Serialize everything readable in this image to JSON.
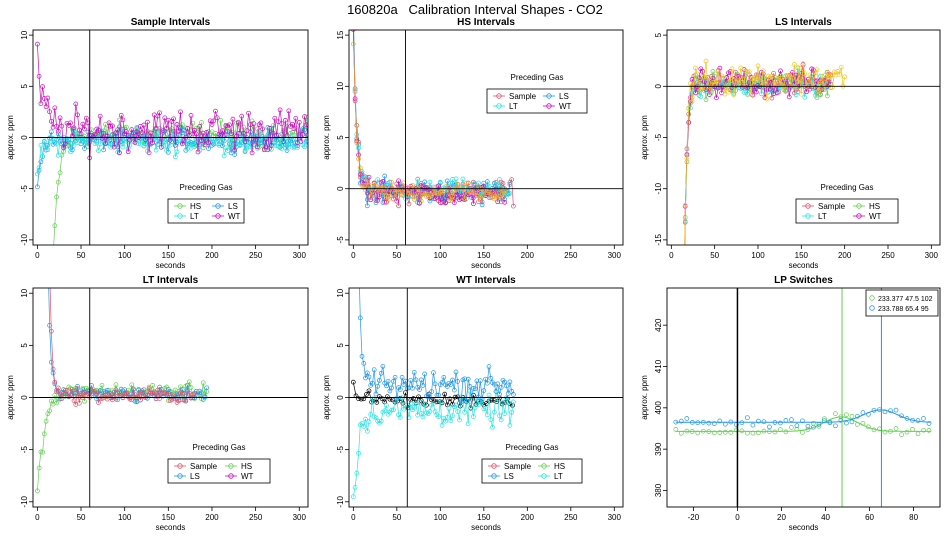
{
  "figure": {
    "title": "160820a   Calibration Interval Shapes - CO2"
  },
  "colors": {
    "Sample": "#df536b",
    "HS": "#61d04f",
    "LS": "#2297e6",
    "LT": "#28e2e5",
    "WT": "#cd0bbc",
    "Black": "#000000"
  },
  "chart_data": [
    {
      "type": "line",
      "title": "Sample Intervals",
      "xlabel": "seconds",
      "ylabel": "approx. ppm",
      "xlim": [
        -5,
        310
      ],
      "ylim": [
        -10.5,
        10.5
      ],
      "xticks": [
        0,
        50,
        100,
        150,
        200,
        250,
        300
      ],
      "yticks": [
        -10,
        -5,
        0,
        5,
        10
      ],
      "hline": 0,
      "vline": 60,
      "legend": {
        "title": "Preceding Gas",
        "position": "bottom-right",
        "entries": [
          "HS",
          "LS",
          "LT",
          "WT"
        ]
      },
      "series": [
        {
          "name": "HS",
          "color": "#61d04f",
          "start": 16,
          "end": 310,
          "dt": 2,
          "base": 0.3,
          "noise": 1.1,
          "amp": -18,
          "tau": 6
        },
        {
          "name": "LS",
          "color": "#2297e6",
          "start": 0,
          "end": 310,
          "dt": 2,
          "base": -0.2,
          "noise": 0.9,
          "amp": -4,
          "tau": 5
        },
        {
          "name": "LT",
          "color": "#28e2e5",
          "start": 0,
          "end": 310,
          "dt": 2,
          "base": -0.4,
          "noise": 1.0,
          "amp": -3.5,
          "tau": 5
        },
        {
          "name": "WT",
          "color": "#cd0bbc",
          "start": 0,
          "end": 310,
          "dt": 2,
          "base": 0.7,
          "noise": 1.8,
          "amp": 6.5,
          "tau": 8
        }
      ]
    },
    {
      "type": "line",
      "title": "HS Intervals",
      "xlabel": "seconds",
      "ylabel": "approx. ppm",
      "xlim": [
        -5,
        310
      ],
      "ylim": [
        -5.5,
        15.5
      ],
      "xticks": [
        0,
        50,
        100,
        150,
        200,
        250,
        300
      ],
      "yticks": [
        -5,
        0,
        5,
        10,
        15
      ],
      "hline": 0,
      "vline": 60,
      "legend": {
        "title": "Preceding Gas",
        "position": "top-center",
        "entries": [
          "Sample",
          "LS",
          "LT",
          "WT"
        ]
      },
      "series": [
        {
          "name": "Sample",
          "color": "#df536b",
          "start": 0,
          "end": 185,
          "dt": 2,
          "base": -0.3,
          "noise": 1.0,
          "amp": 16,
          "tau": 4
        },
        {
          "name": "LS",
          "color": "#2297e6",
          "start": 0,
          "end": 180,
          "dt": 2,
          "base": -0.4,
          "noise": 1.1,
          "amp": 17,
          "tau": 4
        },
        {
          "name": "LT",
          "color": "#28e2e5",
          "start": 0,
          "end": 180,
          "dt": 2,
          "base": -0.2,
          "noise": 0.9,
          "amp": 16,
          "tau": 4
        },
        {
          "name": "WT",
          "color": "#cd0bbc",
          "start": 0,
          "end": 175,
          "dt": 2,
          "base": -0.5,
          "noise": 1.0,
          "amp": 16,
          "tau": 4
        },
        {
          "name": "Orange",
          "color": "#f5a623",
          "start": 0,
          "end": 175,
          "dt": 2,
          "base": -0.3,
          "noise": 0.8,
          "amp": 15,
          "tau": 4
        }
      ]
    },
    {
      "type": "line",
      "title": "LS Intervals",
      "xlabel": "seconds",
      "ylabel": "approx. ppm",
      "xlim": [
        -5,
        310
      ],
      "ylim": [
        -15.5,
        5.5
      ],
      "xticks": [
        0,
        50,
        100,
        150,
        200,
        250,
        300
      ],
      "yticks": [
        -15,
        -10,
        -5,
        0,
        5
      ],
      "hline": 0,
      "vline": null,
      "legend": {
        "title": "Preceding Gas",
        "position": "bottom-right",
        "entries": [
          "Sample",
          "HS",
          "LT",
          "WT"
        ]
      },
      "series": [
        {
          "name": "Sample",
          "color": "#df536b",
          "start": 14,
          "end": 185,
          "dt": 2,
          "base": 0.3,
          "noise": 1.0,
          "amp": -25,
          "tau": 3
        },
        {
          "name": "HS",
          "color": "#61d04f",
          "start": 14,
          "end": 185,
          "dt": 2,
          "base": 0.2,
          "noise": 1.1,
          "amp": -25,
          "tau": 3
        },
        {
          "name": "LT",
          "color": "#28e2e5",
          "start": 14,
          "end": 180,
          "dt": 2,
          "base": 0.1,
          "noise": 0.8,
          "amp": -25,
          "tau": 3
        },
        {
          "name": "WT",
          "color": "#cd0bbc",
          "start": 14,
          "end": 185,
          "dt": 2,
          "base": 0.4,
          "noise": 1.2,
          "amp": -25,
          "tau": 3
        },
        {
          "name": "Orange",
          "color": "#f5c518",
          "start": 14,
          "end": 200,
          "dt": 2,
          "base": 0.8,
          "noise": 1.4,
          "amp": -25,
          "tau": 3
        }
      ]
    },
    {
      "type": "line",
      "title": "LT Intervals",
      "xlabel": "seconds",
      "ylabel": "approx. ppm",
      "xlim": [
        -5,
        310
      ],
      "ylim": [
        -10.5,
        10.5
      ],
      "xticks": [
        0,
        50,
        100,
        150,
        200,
        250,
        300
      ],
      "yticks": [
        -10,
        -5,
        0,
        5,
        10
      ],
      "hline": 0,
      "vline": 60,
      "legend": {
        "title": "Preceding Gas",
        "position": "bottom-right",
        "entries": [
          "Sample",
          "HS",
          "LS",
          "WT"
        ]
      },
      "series": [
        {
          "name": "HS",
          "color": "#61d04f",
          "start": 0,
          "end": 195,
          "dt": 2,
          "base": 0.5,
          "noise": 0.7,
          "amp": -10,
          "tau": 8
        },
        {
          "name": "LS",
          "color": "#2297e6",
          "start": 12,
          "end": 195,
          "dt": 2,
          "base": 0.3,
          "noise": 0.7,
          "amp": 14,
          "tau": 3
        },
        {
          "name": "Sample",
          "color": "#df536b",
          "start": 14,
          "end": 180,
          "dt": 2,
          "base": 0.2,
          "noise": 0.6,
          "amp": 12,
          "tau": 3
        }
      ]
    },
    {
      "type": "line",
      "title": "WT Intervals",
      "xlabel": "seconds",
      "ylabel": "approx. ppm",
      "xlim": [
        -5,
        310
      ],
      "ylim": [
        -10.5,
        10.5
      ],
      "xticks": [
        0,
        50,
        100,
        150,
        200,
        250,
        300
      ],
      "yticks": [
        -10,
        -5,
        0,
        5,
        10
      ],
      "hline": 0,
      "vline": 62,
      "legend": {
        "title": "Preceding Gas",
        "position": "bottom-right",
        "entries": [
          "Sample",
          "HS",
          "LS",
          "LT"
        ]
      },
      "series": [
        {
          "name": "Black",
          "color": "#000000",
          "start": 0,
          "end": 185,
          "dt": 3,
          "base": -0.3,
          "noise": 0.6,
          "amp": 1.5,
          "tau": 8
        },
        {
          "name": "LT",
          "color": "#28e2e5",
          "start": 0,
          "end": 185,
          "dt": 2,
          "base": -1.2,
          "noise": 1.3,
          "amp": -9,
          "tau": 6
        },
        {
          "name": "LS",
          "color": "#2297e6",
          "start": 6,
          "end": 185,
          "dt": 2,
          "base": 1.2,
          "noise": 1.3,
          "amp": 12,
          "tau": 3
        }
      ]
    },
    {
      "type": "scatter",
      "title": "LP Switches",
      "xlabel": "seconds",
      "ylabel": "approx. ppm",
      "xlim": [
        -32,
        92
      ],
      "ylim": [
        376,
        429
      ],
      "xticks": [
        -20,
        0,
        20,
        40,
        60,
        80
      ],
      "yticks": [
        380,
        390,
        400,
        410,
        420
      ],
      "vline_black": 0,
      "vlines": [
        {
          "x": 47.5,
          "color": "#61d04f"
        },
        {
          "x": 65.4,
          "color": "#2297e6"
        }
      ],
      "legend": {
        "position": "top-right",
        "entries": [
          "233.377 47.5 102",
          "233.788 65.4 95"
        ]
      },
      "series": [
        {
          "name": "233.377 47.5 102",
          "color": "#61d04f",
          "start": -28,
          "end": 88,
          "dt": 2.5,
          "level": 394.3,
          "bump_at": 47,
          "bump": 3.5,
          "noise": 0.8
        },
        {
          "name": "233.788 65.4 95",
          "color": "#2297e6",
          "start": -28,
          "end": 88,
          "dt": 2.5,
          "level": 396.5,
          "bump_at": 65,
          "bump": 3.0,
          "noise": 0.9
        }
      ]
    }
  ]
}
